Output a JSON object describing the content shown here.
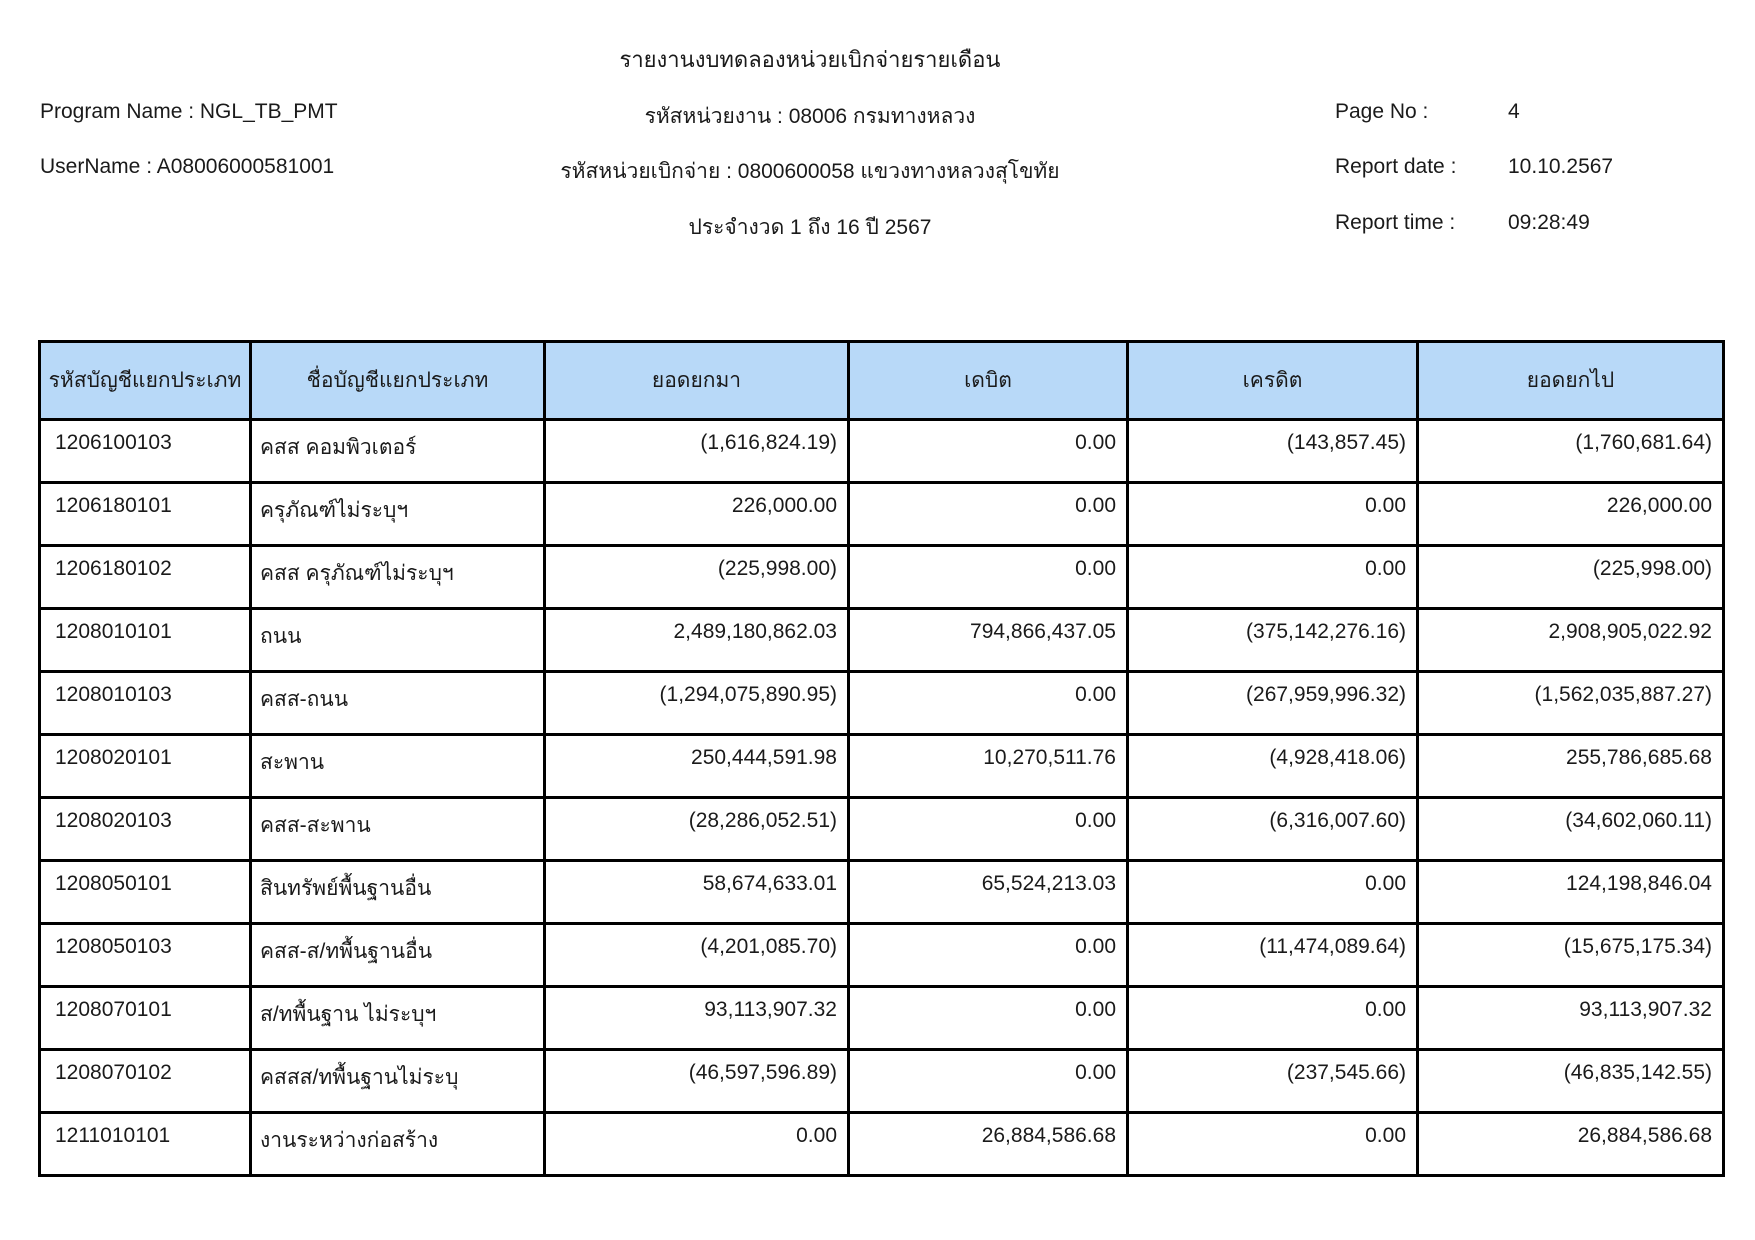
{
  "report": {
    "title": "รายงานงบทดลองหน่วยเบิกจ่ายรายเดือน",
    "program_name_label": "Program Name :",
    "program_name_value": "NGL_TB_PMT",
    "username_label": "UserName :",
    "username_value": "A08006000581001",
    "agency_line": "รหัสหน่วยงาน : 08006 กรมทางหลวง",
    "disbursement_unit_line": "รหัสหน่วยเบิกจ่าย : 0800600058 แขวงทางหลวงสุโขทัย",
    "period_line": "ประจำงวด 1 ถึง 16 ปี 2567",
    "page_no_label": "Page No :",
    "page_no_value": "4",
    "report_date_label": "Report date :",
    "report_date_value": "10.10.2567",
    "report_time_label": "Report time :",
    "report_time_value": "09:28:49"
  },
  "table": {
    "columns": [
      "รหัสบัญชีแยกประเภท",
      "ชื่อบัญชีแยกประเภท",
      "ยอดยกมา",
      "เดบิต",
      "เครดิต",
      "ยอดยกไป"
    ],
    "rows": [
      [
        "1206100103",
        "คสส คอมพิวเตอร์",
        "(1,616,824.19)",
        "0.00",
        "(143,857.45)",
        "(1,760,681.64)"
      ],
      [
        "1206180101",
        "ครุภัณฑ์ไม่ระบุฯ",
        "226,000.00",
        "0.00",
        "0.00",
        "226,000.00"
      ],
      [
        "1206180102",
        "คสส ครุภัณฑ์ไม่ระบุฯ",
        "(225,998.00)",
        "0.00",
        "0.00",
        "(225,998.00)"
      ],
      [
        "1208010101",
        "ถนน",
        "2,489,180,862.03",
        "794,866,437.05",
        "(375,142,276.16)",
        "2,908,905,022.92"
      ],
      [
        "1208010103",
        "คสส-ถนน",
        "(1,294,075,890.95)",
        "0.00",
        "(267,959,996.32)",
        "(1,562,035,887.27)"
      ],
      [
        "1208020101",
        "สะพาน",
        "250,444,591.98",
        "10,270,511.76",
        "(4,928,418.06)",
        "255,786,685.68"
      ],
      [
        "1208020103",
        "คสส-สะพาน",
        "(28,286,052.51)",
        "0.00",
        "(6,316,007.60)",
        "(34,602,060.11)"
      ],
      [
        "1208050101",
        "สินทรัพย์พื้นฐานอื่น",
        "58,674,633.01",
        "65,524,213.03",
        "0.00",
        "124,198,846.04"
      ],
      [
        "1208050103",
        "คสส-ส/ทพื้นฐานอื่น",
        "(4,201,085.70)",
        "0.00",
        "(11,474,089.64)",
        "(15,675,175.34)"
      ],
      [
        "1208070101",
        "ส/ทพื้นฐาน ไม่ระบุฯ",
        "93,113,907.32",
        "0.00",
        "0.00",
        "93,113,907.32"
      ],
      [
        "1208070102",
        "คสสส/ทพื้นฐานไม่ระบุ",
        "(46,597,596.89)",
        "0.00",
        "(237,545.66)",
        "(46,835,142.55)"
      ],
      [
        "1211010101",
        "งานระหว่างก่อสร้าง",
        "0.00",
        "26,884,586.68",
        "0.00",
        "26,884,586.68"
      ]
    ]
  },
  "colors": {
    "header_fill": "#b8d9f8",
    "border": "#000000"
  }
}
